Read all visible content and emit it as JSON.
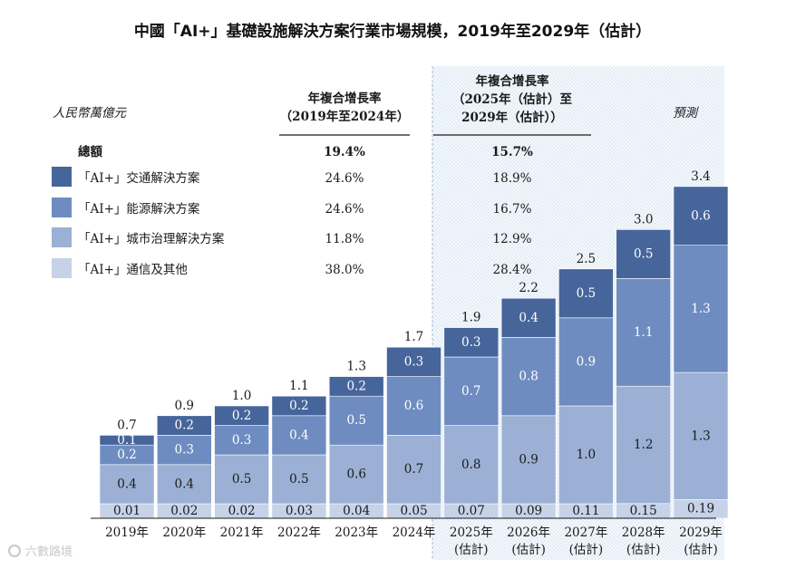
{
  "title": "中國「AI+」基礎設施解決方案行業市場規模，2019年至2029年（估計）",
  "watermark": "六數路境",
  "chart_data": {
    "type": "bar",
    "stacked": true,
    "unit_label": "人民幣萬億元",
    "forecast_label": "預測",
    "categories": [
      "2019年",
      "2020年",
      "2021年",
      "2022年",
      "2023年",
      "2024年",
      "2025年\n(估計)",
      "2026年\n(估計)",
      "2027年\n(估計)",
      "2028年\n(估計)",
      "2029年\n(估計)"
    ],
    "totals": [
      "0.7",
      "0.9",
      "1.0",
      "1.1",
      "1.3",
      "1.7",
      "1.9",
      "2.2",
      "2.5",
      "3.0",
      "3.4"
    ],
    "series": [
      {
        "name": "「AI+」通信及其他",
        "color": "#c5d2e8",
        "text_color": "#1a1a1a",
        "values": [
          0.01,
          0.02,
          0.02,
          0.03,
          0.04,
          0.05,
          0.07,
          0.09,
          0.11,
          0.15,
          0.19
        ],
        "labels": [
          "0.01",
          "0.02",
          "0.02",
          "0.03",
          "0.04",
          "0.05",
          "0.07",
          "0.09",
          "0.11",
          "0.15",
          "0.19"
        ]
      },
      {
        "name": "「AI+」城市治理解決方案",
        "color": "#9bb0d4",
        "text_color": "#1a1a1a",
        "values": [
          0.4,
          0.4,
          0.5,
          0.5,
          0.6,
          0.7,
          0.8,
          0.9,
          1.0,
          1.2,
          1.3
        ],
        "labels": [
          "0.4",
          "0.4",
          "0.5",
          "0.5",
          "0.6",
          "0.7",
          "0.8",
          "0.9",
          "1.0",
          "1.2",
          "1.3"
        ]
      },
      {
        "name": "「AI+」能源解決方案",
        "color": "#6e8cc0",
        "text_color": "#ffffff",
        "values": [
          0.2,
          0.3,
          0.3,
          0.4,
          0.5,
          0.6,
          0.7,
          0.8,
          0.9,
          1.1,
          1.3
        ],
        "labels": [
          "0.2",
          "0.3",
          "0.3",
          "0.4",
          "0.5",
          "0.6",
          "0.7",
          "0.8",
          "0.9",
          "1.1",
          "1.3"
        ]
      },
      {
        "name": "「AI+」交通解決方案",
        "color": "#46659b",
        "text_color": "#ffffff",
        "values": [
          0.1,
          0.2,
          0.2,
          0.2,
          0.2,
          0.3,
          0.3,
          0.4,
          0.5,
          0.5,
          0.6
        ],
        "labels": [
          "0.1",
          "0.2",
          "0.2",
          "0.2",
          "0.2",
          "0.3",
          "0.3",
          "0.4",
          "0.5",
          "0.5",
          "0.6"
        ]
      }
    ],
    "cagr_table": {
      "col1_header": [
        "年複合增長率",
        "（2019年至2024年）"
      ],
      "col2_header": [
        "年複合增長率",
        "（2025年（估計）至",
        "2029年（估計））"
      ],
      "rows": [
        {
          "name": "總額",
          "c1": "19.4%",
          "c2": "15.7%",
          "bold": true
        },
        {
          "name": "「AI+」交通解決方案",
          "c1": "24.6%",
          "c2": "18.9%",
          "color": "#46659b"
        },
        {
          "name": "「AI+」能源解決方案",
          "c1": "24.6%",
          "c2": "16.7%",
          "color": "#6e8cc0"
        },
        {
          "name": "「AI+」城市治理解決方案",
          "c1": "11.8%",
          "c2": "12.9%",
          "color": "#9bb0d4"
        },
        {
          "name": "「AI+」通信及其他",
          "c1": "38.0%",
          "c2": "28.4%",
          "color": "#c5d2e8"
        }
      ]
    }
  }
}
